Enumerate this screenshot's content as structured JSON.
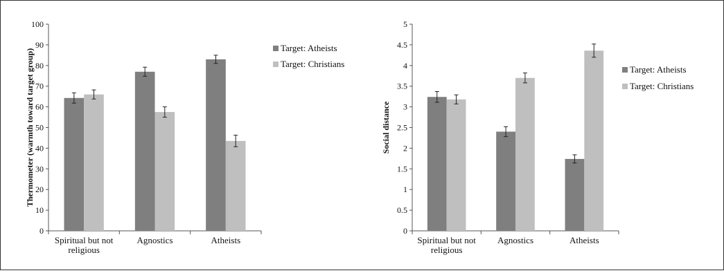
{
  "colors": {
    "atheists": "#7f7f7f",
    "christians": "#bfbfbf",
    "axis": "#555555"
  },
  "chart_data": [
    {
      "type": "bar",
      "title": "",
      "xlabel": "",
      "ylabel": "Thermometer (warmth toward target group)",
      "ylim": [
        0,
        100
      ],
      "yticks": [
        0,
        10,
        20,
        30,
        40,
        50,
        60,
        70,
        80,
        90,
        100
      ],
      "ytick_labels": [
        "0",
        "10",
        "20",
        "30",
        "40",
        "50",
        "60",
        "70",
        "80",
        "90",
        "100"
      ],
      "categories": [
        [
          "Spiritual but not",
          "religious"
        ],
        [
          "Agnostics"
        ],
        [
          "Atheists"
        ]
      ],
      "grid": false,
      "legend": "right",
      "series": [
        {
          "name": "Target: Atheists",
          "color": "atheists",
          "values": [
            64.3,
            77.0,
            83.0
          ],
          "errors": [
            2.5,
            2.2,
            2.0
          ]
        },
        {
          "name": "Target: Christians",
          "color": "christians",
          "values": [
            66.0,
            57.5,
            43.5
          ],
          "errors": [
            2.2,
            2.5,
            2.8
          ]
        }
      ]
    },
    {
      "type": "bar",
      "title": "",
      "xlabel": "",
      "ylabel": "Social distance",
      "ylim": [
        0,
        5
      ],
      "yticks": [
        0,
        0.5,
        1,
        1.5,
        2,
        2.5,
        3,
        3.5,
        4,
        4.5,
        5
      ],
      "ytick_labels": [
        "0",
        "0.5",
        "1",
        "1.5",
        "2",
        "2.5",
        "3",
        "3.5",
        "4",
        "4.5",
        "5"
      ],
      "categories": [
        [
          "Spiritual but not",
          "religious"
        ],
        [
          "Agnostics"
        ],
        [
          "Atheists"
        ]
      ],
      "grid": false,
      "legend": "right",
      "series": [
        {
          "name": "Target: Atheists",
          "color": "atheists",
          "values": [
            3.24,
            2.4,
            1.74
          ],
          "errors": [
            0.13,
            0.12,
            0.1
          ]
        },
        {
          "name": "Target: Christians",
          "color": "christians",
          "values": [
            3.18,
            3.7,
            4.36
          ],
          "errors": [
            0.11,
            0.12,
            0.16
          ]
        }
      ]
    }
  ]
}
